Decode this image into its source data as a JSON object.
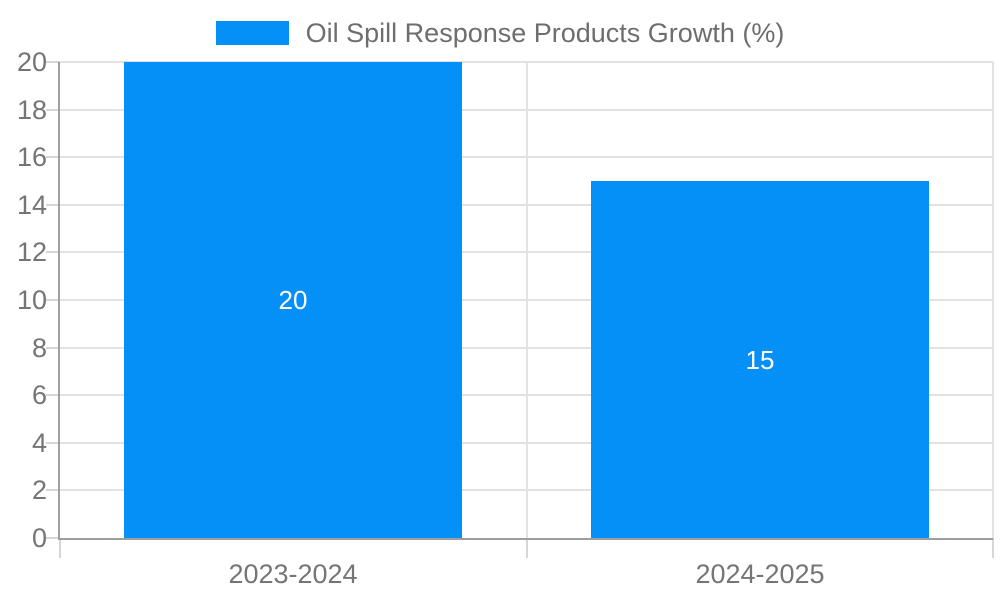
{
  "chart_data": {
    "type": "bar",
    "title": "Oil Spill Response Products Growth (%)",
    "categories": [
      "2023-2024",
      "2024-2025"
    ],
    "values": [
      20,
      15
    ],
    "bar_value_labels": [
      "20",
      "15"
    ],
    "xlabel": "",
    "ylabel": "",
    "ylim": [
      0,
      20
    ],
    "ytick_step": 2,
    "yticks": [
      0,
      2,
      4,
      6,
      8,
      10,
      12,
      14,
      16,
      18,
      20
    ],
    "grid": true,
    "legend_position": "top-center",
    "colors": {
      "bar": "#0590f8",
      "bar_value_text": "#ffffff",
      "legend_text": "#6e6e6e",
      "axis_label_text": "#757575",
      "gridline": "#e2e2e2",
      "tick": "#d6d6d6",
      "axis_line": "#9e9e9e",
      "background": "#ffffff"
    }
  }
}
